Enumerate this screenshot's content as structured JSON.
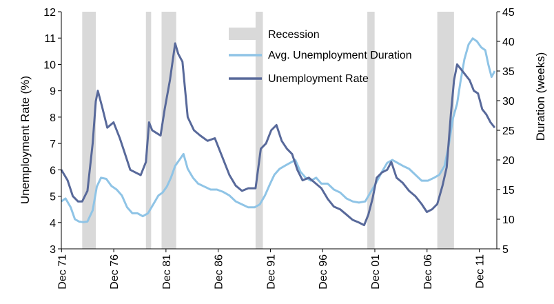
{
  "chart_data": {
    "type": "line",
    "title": "",
    "ylabel": "Unemployment Rate (%)",
    "y2label": "Duration (weeks)",
    "ylim": [
      3,
      12
    ],
    "y2lim": [
      5,
      45
    ],
    "yticks": [
      "3",
      "4",
      "5",
      "6",
      "7",
      "8",
      "9",
      "10",
      "11",
      "12"
    ],
    "y2ticks": [
      "5",
      "10",
      "15",
      "20",
      "25",
      "30",
      "35",
      "40",
      "45"
    ],
    "xlim": [
      1971.9,
      2013.6
    ],
    "x_tick_labels": [
      "Dec 71",
      "Dec 76",
      "Dec 81",
      "Dec 86",
      "Dec 91",
      "Dec 96",
      "Dec 01",
      "Dec 06",
      "Dec 11"
    ],
    "x_tick_years": [
      1971.92,
      1976.92,
      1981.92,
      1986.92,
      1991.92,
      1996.92,
      2001.92,
      2006.92,
      2011.92
    ],
    "legend": {
      "position": "top-center",
      "entries": [
        "Recession",
        "Avg. Unemployment Duration",
        "Unemployment Rate"
      ]
    },
    "recessions": [
      [
        1973.9,
        1975.2
      ],
      [
        1980.0,
        1980.5
      ],
      [
        1981.5,
        1982.9
      ],
      [
        1990.5,
        1991.2
      ],
      [
        2001.2,
        2001.9
      ],
      [
        2007.9,
        2009.5
      ]
    ],
    "series": [
      {
        "name": "Unemployment Rate",
        "axis": "left",
        "color": "#58699a",
        "x": [
          1971.9,
          1972.5,
          1973.0,
          1973.5,
          1973.9,
          1974.4,
          1974.9,
          1975.2,
          1975.4,
          1975.8,
          1976.3,
          1976.9,
          1977.5,
          1978.0,
          1978.5,
          1979.0,
          1979.5,
          1980.0,
          1980.3,
          1980.6,
          1981.0,
          1981.4,
          1981.8,
          1982.3,
          1982.8,
          1983.1,
          1983.5,
          1984.0,
          1984.6,
          1985.2,
          1985.9,
          1986.6,
          1987.3,
          1988.0,
          1988.6,
          1989.2,
          1989.8,
          1990.5,
          1991.0,
          1991.5,
          1992.0,
          1992.5,
          1993.0,
          1993.5,
          1994.0,
          1994.5,
          1995.0,
          1995.6,
          1996.2,
          1996.8,
          1997.4,
          1998.0,
          1998.6,
          1999.2,
          1999.8,
          2000.4,
          2000.9,
          2001.3,
          2001.7,
          2002.1,
          2002.6,
          2003.1,
          2003.5,
          2004.0,
          2004.6,
          2005.2,
          2005.8,
          2006.4,
          2006.9,
          2007.4,
          2007.9,
          2008.4,
          2008.8,
          2009.2,
          2009.5,
          2009.8,
          2010.2,
          2010.6,
          2011.0,
          2011.4,
          2011.8,
          2012.2,
          2012.6,
          2013.0,
          2013.4
        ],
        "values": [
          6.0,
          5.6,
          5.0,
          4.8,
          4.8,
          5.2,
          7.0,
          8.6,
          9.0,
          8.4,
          7.6,
          7.8,
          7.2,
          6.6,
          6.0,
          5.9,
          5.8,
          6.3,
          7.8,
          7.5,
          7.4,
          7.3,
          8.3,
          9.4,
          10.8,
          10.4,
          10.1,
          8.0,
          7.5,
          7.3,
          7.1,
          7.2,
          6.5,
          5.8,
          5.4,
          5.2,
          5.3,
          5.3,
          6.8,
          7.0,
          7.5,
          7.7,
          7.1,
          6.8,
          6.6,
          6.0,
          5.6,
          5.7,
          5.5,
          5.3,
          4.9,
          4.6,
          4.5,
          4.3,
          4.1,
          4.0,
          3.9,
          4.3,
          4.9,
          5.7,
          5.9,
          6.0,
          6.3,
          5.7,
          5.5,
          5.2,
          5.0,
          4.7,
          4.4,
          4.5,
          4.7,
          5.4,
          6.1,
          8.1,
          9.4,
          10.0,
          9.8,
          9.6,
          9.4,
          9.0,
          8.9,
          8.3,
          8.1,
          7.8,
          7.6
        ]
      },
      {
        "name": "Avg. Unemployment Duration",
        "axis": "right",
        "color": "#8fc4e6",
        "x": [
          1971.9,
          1972.3,
          1972.8,
          1973.2,
          1973.6,
          1974.0,
          1974.4,
          1974.9,
          1975.3,
          1975.7,
          1976.2,
          1976.7,
          1977.2,
          1977.7,
          1978.2,
          1978.7,
          1979.2,
          1979.7,
          1980.2,
          1980.7,
          1981.2,
          1981.6,
          1982.0,
          1982.4,
          1982.8,
          1983.2,
          1983.6,
          1984.0,
          1984.5,
          1985.0,
          1985.6,
          1986.2,
          1986.8,
          1987.4,
          1988.0,
          1988.6,
          1989.2,
          1989.8,
          1990.4,
          1990.9,
          1991.4,
          1991.9,
          1992.3,
          1992.8,
          1993.3,
          1993.8,
          1994.3,
          1994.8,
          1995.3,
          1995.8,
          1996.3,
          1996.8,
          1997.4,
          1998.0,
          1998.6,
          1999.2,
          1999.8,
          2000.4,
          2001.0,
          2001.5,
          2002.0,
          2002.6,
          2003.1,
          2003.6,
          2004.1,
          2004.6,
          2005.2,
          2005.8,
          2006.4,
          2007.0,
          2007.6,
          2008.1,
          2008.6,
          2009.0,
          2009.4,
          2009.8,
          2010.1,
          2010.5,
          2010.9,
          2011.3,
          2011.7,
          2012.1,
          2012.5,
          2012.8,
          2013.1,
          2013.4
        ],
        "values": [
          13.0,
          13.5,
          12.0,
          10.0,
          9.6,
          9.5,
          9.6,
          11.5,
          15.5,
          17.0,
          16.8,
          15.6,
          15.0,
          14.0,
          12.0,
          11.0,
          11.0,
          10.5,
          11.0,
          12.5,
          14.0,
          14.5,
          15.5,
          17.0,
          19.0,
          20.0,
          21.0,
          18.5,
          17.0,
          16.0,
          15.5,
          15.0,
          15.0,
          14.6,
          14.0,
          13.0,
          12.5,
          12.0,
          12.0,
          12.5,
          14.0,
          16.0,
          17.5,
          18.5,
          19.0,
          19.5,
          20.0,
          18.0,
          17.0,
          16.5,
          17.0,
          16.0,
          16.0,
          15.0,
          14.5,
          13.5,
          13.0,
          12.8,
          13.0,
          14.5,
          16.0,
          18.0,
          19.5,
          20.0,
          19.5,
          19.0,
          18.5,
          17.5,
          16.5,
          16.5,
          17.0,
          17.5,
          19.0,
          22.5,
          27.0,
          29.5,
          33.0,
          37.0,
          39.5,
          40.5,
          40.0,
          39.0,
          38.5,
          36.0,
          34.0,
          35.0
        ]
      }
    ]
  }
}
